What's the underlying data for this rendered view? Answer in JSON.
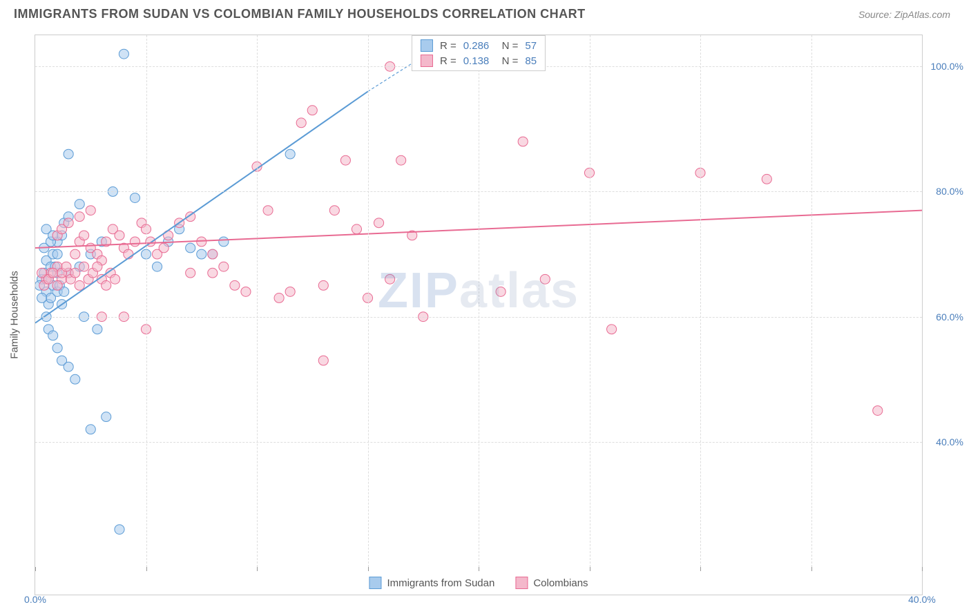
{
  "title": "IMMIGRANTS FROM SUDAN VS COLOMBIAN FAMILY HOUSEHOLDS CORRELATION CHART",
  "source": "Source: ZipAtlas.com",
  "watermark": {
    "part1": "ZIP",
    "part2": "atlas"
  },
  "chart": {
    "type": "scatter",
    "ylabel": "Family Households",
    "xlim": [
      0,
      40
    ],
    "ylim": [
      20,
      105
    ],
    "x_ticks": [
      0,
      5,
      10,
      15,
      20,
      25,
      30,
      35,
      40
    ],
    "x_tick_labels": {
      "0": "0.0%",
      "40": "40.0%"
    },
    "y_gridlines": [
      40,
      60,
      80,
      100
    ],
    "y_tick_labels": {
      "40": "40.0%",
      "60": "60.0%",
      "80": "80.0%",
      "100": "100.0%"
    },
    "background_color": "#ffffff",
    "grid_color": "#dddddd",
    "marker_radius": 7,
    "marker_opacity": 0.55,
    "series": [
      {
        "name": "Immigrants from Sudan",
        "color_stroke": "#5b9bd5",
        "color_fill": "#a8cbed",
        "r": "0.286",
        "n": "57",
        "regression": {
          "x1": 0,
          "y1": 59,
          "x2": 15,
          "y2": 96,
          "x2_dash": 19,
          "y2_dash": 105
        },
        "points": [
          [
            0.3,
            66
          ],
          [
            0.4,
            67
          ],
          [
            0.5,
            64
          ],
          [
            0.6,
            62
          ],
          [
            0.7,
            63
          ],
          [
            0.8,
            65
          ],
          [
            0.5,
            69
          ],
          [
            0.8,
            70
          ],
          [
            1.0,
            72
          ],
          [
            1.2,
            73
          ],
          [
            1.3,
            75
          ],
          [
            1.5,
            76
          ],
          [
            0.5,
            60
          ],
          [
            0.6,
            58
          ],
          [
            0.8,
            57
          ],
          [
            1.0,
            55
          ],
          [
            1.2,
            53
          ],
          [
            1.5,
            52
          ],
          [
            1.8,
            50
          ],
          [
            0.4,
            71
          ],
          [
            0.3,
            63
          ],
          [
            0.2,
            65
          ],
          [
            0.6,
            66
          ],
          [
            0.7,
            68
          ],
          [
            1.0,
            64
          ],
          [
            1.2,
            62
          ],
          [
            1.5,
            67
          ],
          [
            2.0,
            68
          ],
          [
            2.5,
            70
          ],
          [
            3.0,
            72
          ],
          [
            3.5,
            80
          ],
          [
            4.0,
            102
          ],
          [
            2.8,
            58
          ],
          [
            2.2,
            60
          ],
          [
            3.2,
            44
          ],
          [
            2.5,
            42
          ],
          [
            3.8,
            26
          ],
          [
            1.5,
            86
          ],
          [
            2.0,
            78
          ],
          [
            4.5,
            79
          ],
          [
            5.0,
            70
          ],
          [
            5.5,
            68
          ],
          [
            6.0,
            72
          ],
          [
            6.5,
            74
          ],
          [
            7.0,
            71
          ],
          [
            7.5,
            70
          ],
          [
            8.0,
            70
          ],
          [
            8.5,
            72
          ],
          [
            11.5,
            86
          ],
          [
            1.0,
            67
          ],
          [
            0.9,
            68
          ],
          [
            1.1,
            65
          ],
          [
            1.3,
            64
          ],
          [
            0.7,
            72
          ],
          [
            0.5,
            74
          ],
          [
            0.8,
            73
          ],
          [
            1.0,
            70
          ]
        ]
      },
      {
        "name": "Colombians",
        "color_stroke": "#e86a92",
        "color_fill": "#f4b8cb",
        "r": "0.138",
        "n": "85",
        "regression": {
          "x1": 0,
          "y1": 71,
          "x2": 40,
          "y2": 77
        },
        "points": [
          [
            0.5,
            66
          ],
          [
            0.7,
            67
          ],
          [
            1.0,
            68
          ],
          [
            1.2,
            66
          ],
          [
            1.5,
            67
          ],
          [
            1.8,
            70
          ],
          [
            2.0,
            72
          ],
          [
            2.2,
            73
          ],
          [
            2.5,
            71
          ],
          [
            2.8,
            70
          ],
          [
            3.0,
            69
          ],
          [
            3.2,
            72
          ],
          [
            3.5,
            74
          ],
          [
            3.8,
            73
          ],
          [
            4.0,
            71
          ],
          [
            4.2,
            70
          ],
          [
            4.5,
            72
          ],
          [
            4.8,
            75
          ],
          [
            5.0,
            74
          ],
          [
            5.2,
            72
          ],
          [
            5.5,
            70
          ],
          [
            5.8,
            71
          ],
          [
            6.0,
            73
          ],
          [
            6.5,
            75
          ],
          [
            7.0,
            76
          ],
          [
            7.5,
            72
          ],
          [
            8.0,
            70
          ],
          [
            8.5,
            68
          ],
          [
            9.0,
            65
          ],
          [
            9.5,
            64
          ],
          [
            10.0,
            84
          ],
          [
            10.5,
            77
          ],
          [
            11.0,
            63
          ],
          [
            11.5,
            64
          ],
          [
            12.0,
            91
          ],
          [
            12.5,
            93
          ],
          [
            13.0,
            65
          ],
          [
            13.5,
            77
          ],
          [
            14.0,
            85
          ],
          [
            14.5,
            74
          ],
          [
            15.0,
            63
          ],
          [
            15.5,
            75
          ],
          [
            16.0,
            100
          ],
          [
            16.5,
            85
          ],
          [
            17.0,
            73
          ],
          [
            17.5,
            60
          ],
          [
            18.0,
            104
          ],
          [
            13.0,
            53
          ],
          [
            3.0,
            60
          ],
          [
            4.0,
            60
          ],
          [
            5.0,
            58
          ],
          [
            7.0,
            67
          ],
          [
            8.0,
            67
          ],
          [
            1.0,
            73
          ],
          [
            1.2,
            74
          ],
          [
            1.5,
            75
          ],
          [
            2.0,
            76
          ],
          [
            2.5,
            77
          ],
          [
            16.0,
            66
          ],
          [
            21.0,
            64
          ],
          [
            22.0,
            88
          ],
          [
            23.0,
            66
          ],
          [
            25.0,
            83
          ],
          [
            26.0,
            58
          ],
          [
            30.0,
            83
          ],
          [
            33.0,
            82
          ],
          [
            38.0,
            45
          ],
          [
            0.3,
            67
          ],
          [
            0.4,
            65
          ],
          [
            0.6,
            66
          ],
          [
            0.8,
            67
          ],
          [
            1.0,
            65
          ],
          [
            1.2,
            67
          ],
          [
            1.4,
            68
          ],
          [
            1.6,
            66
          ],
          [
            1.8,
            67
          ],
          [
            2.0,
            65
          ],
          [
            2.2,
            68
          ],
          [
            2.4,
            66
          ],
          [
            2.6,
            67
          ],
          [
            2.8,
            68
          ],
          [
            3.0,
            66
          ],
          [
            3.2,
            65
          ],
          [
            3.4,
            67
          ],
          [
            3.6,
            66
          ]
        ]
      }
    ]
  }
}
